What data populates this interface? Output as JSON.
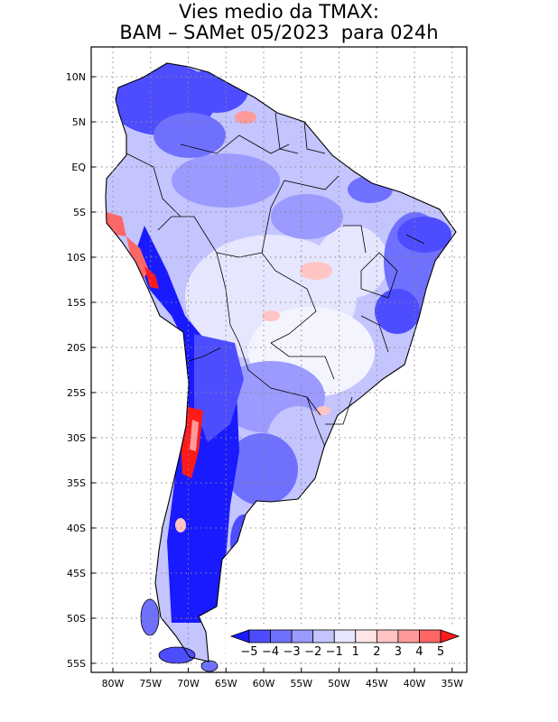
{
  "title": {
    "line1": "Vies medio da TMAX:",
    "line2": "BAM – SAMet 05/2023  para 024h"
  },
  "map": {
    "lon_range": [
      -83,
      -34
    ],
    "lat_range": [
      -56,
      13
    ],
    "lon_ticks": [
      {
        "value": -80,
        "label": "80W"
      },
      {
        "value": -75,
        "label": "75W"
      },
      {
        "value": -70,
        "label": "70W"
      },
      {
        "value": -65,
        "label": "65W"
      },
      {
        "value": -60,
        "label": "60W"
      },
      {
        "value": -55,
        "label": "55W"
      },
      {
        "value": -50,
        "label": "50W"
      },
      {
        "value": -45,
        "label": "45W"
      },
      {
        "value": -40,
        "label": "40W"
      },
      {
        "value": -35,
        "label": "35W"
      }
    ],
    "lat_ticks": [
      {
        "value": 10,
        "label": "10N"
      },
      {
        "value": 5,
        "label": "5N"
      },
      {
        "value": 0,
        "label": "EQ"
      },
      {
        "value": -5,
        "label": "5S"
      },
      {
        "value": -10,
        "label": "10S"
      },
      {
        "value": -15,
        "label": "15S"
      },
      {
        "value": -20,
        "label": "20S"
      },
      {
        "value": -25,
        "label": "25S"
      },
      {
        "value": -30,
        "label": "30S"
      },
      {
        "value": -35,
        "label": "35S"
      },
      {
        "value": -40,
        "label": "40S"
      },
      {
        "value": -45,
        "label": "45S"
      },
      {
        "value": -50,
        "label": "50S"
      },
      {
        "value": -55,
        "label": "55S"
      }
    ],
    "gridlines": true
  },
  "colorbar": {
    "colors": [
      "#1a1aff",
      "#4d4dff",
      "#7070ff",
      "#9a9aff",
      "#c4c4ff",
      "#e6e6ff",
      "#ffe6e6",
      "#ffc4c4",
      "#ff9a9a",
      "#ff6666",
      "#ff1a1a"
    ],
    "labels": [
      "−5",
      "−4",
      "−3",
      "−2",
      "−1",
      "1",
      "2",
      "3",
      "4",
      "5"
    ]
  }
}
